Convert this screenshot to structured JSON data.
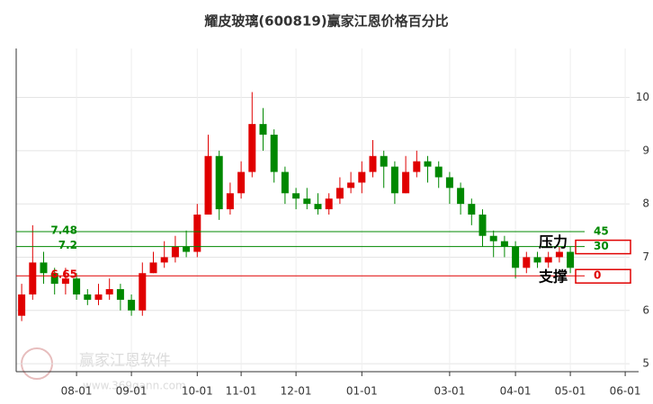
{
  "chart_data": {
    "type": "candlestick",
    "title": "耀皮玻璃(600819)赢家江恩价格百分比",
    "categories": [
      null,
      null,
      null,
      null,
      null,
      "08-01",
      null,
      null,
      null,
      null,
      "09-01",
      null,
      null,
      null,
      null,
      null,
      "10-01",
      null,
      null,
      null,
      "11-01",
      null,
      null,
      null,
      null,
      "12-01",
      null,
      null,
      null,
      null,
      null,
      "01-01",
      null,
      null,
      null,
      null,
      null,
      null,
      null,
      "03-01",
      null,
      null,
      null,
      null,
      null,
      "04-01",
      null,
      null,
      null,
      null,
      "05-01",
      null,
      null,
      null,
      null,
      "06-01"
    ],
    "open": [
      5.9,
      6.3,
      6.9,
      6.7,
      6.5,
      6.6,
      6.3,
      6.2,
      6.3,
      6.4,
      6.2,
      6.0,
      6.7,
      6.9,
      7.0,
      7.2,
      7.1,
      7.8,
      8.9,
      7.9,
      8.2,
      8.6,
      9.5,
      9.3,
      8.6,
      8.2,
      8.1,
      8.0,
      7.9,
      8.1,
      8.3,
      8.4,
      8.6,
      8.9,
      8.7,
      8.2,
      8.6,
      8.8,
      8.7,
      8.5,
      8.3,
      8.0,
      7.8,
      7.4,
      7.3,
      7.2,
      6.8,
      7.0,
      6.9,
      7.0,
      7.1,
      null,
      null,
      null,
      null,
      null
    ],
    "high": [
      6.5,
      7.6,
      7.1,
      6.8,
      6.8,
      6.7,
      6.4,
      6.5,
      6.6,
      6.5,
      6.3,
      6.9,
      7.1,
      7.3,
      7.4,
      7.5,
      8.0,
      9.3,
      9.0,
      8.4,
      8.8,
      10.1,
      9.8,
      9.4,
      8.7,
      8.3,
      8.3,
      8.2,
      8.2,
      8.5,
      8.6,
      8.8,
      9.2,
      9.0,
      8.8,
      8.9,
      9.0,
      8.9,
      8.8,
      8.6,
      8.4,
      8.1,
      7.9,
      7.5,
      7.4,
      7.3,
      7.1,
      7.1,
      7.1,
      7.2,
      7.2,
      null,
      null,
      null,
      null,
      null
    ],
    "low": [
      5.8,
      6.2,
      6.5,
      6.3,
      6.3,
      6.2,
      6.1,
      6.1,
      6.2,
      6.0,
      5.9,
      5.9,
      6.7,
      6.8,
      6.9,
      7.0,
      7.0,
      7.8,
      7.7,
      7.8,
      8.1,
      8.5,
      9.0,
      8.4,
      8.0,
      7.9,
      7.9,
      7.8,
      7.8,
      8.0,
      8.2,
      8.2,
      8.5,
      8.3,
      8.0,
      8.2,
      8.5,
      8.4,
      8.3,
      8.0,
      7.8,
      7.6,
      7.2,
      7.0,
      7.0,
      6.6,
      6.7,
      6.8,
      6.8,
      6.9,
      6.7,
      null,
      null,
      null,
      null,
      null
    ],
    "close": [
      6.3,
      6.9,
      6.7,
      6.5,
      6.6,
      6.3,
      6.2,
      6.3,
      6.4,
      6.2,
      6.0,
      6.7,
      6.9,
      7.0,
      7.2,
      7.1,
      7.8,
      8.9,
      7.9,
      8.2,
      8.6,
      9.5,
      9.3,
      8.6,
      8.2,
      8.1,
      8.0,
      7.9,
      8.1,
      8.3,
      8.4,
      8.6,
      8.9,
      8.7,
      8.2,
      8.6,
      8.8,
      8.7,
      8.5,
      8.3,
      8.0,
      7.8,
      7.4,
      7.3,
      7.2,
      6.8,
      7.0,
      6.9,
      7.0,
      7.1,
      6.8,
      null,
      null,
      null,
      null,
      null
    ],
    "up_color": "#e00000",
    "down_color": "#008800",
    "ylim": [
      4.85,
      10.75
    ],
    "yticks": [
      5,
      6,
      7,
      8,
      9,
      10
    ],
    "grid": true,
    "levels": [
      {
        "value": 7.48,
        "label": "7.48",
        "percent": 45,
        "color": "#008800",
        "boxed": false
      },
      {
        "value": 7.2,
        "label": "7.2",
        "percent": 30,
        "color": "#008800",
        "boxed": true
      },
      {
        "value": 6.65,
        "label": "6.65",
        "percent": 0,
        "color": "#e00000",
        "boxed": true
      }
    ],
    "annotations": [
      {
        "text": "压力",
        "value": 7.2
      },
      {
        "text": "支撑",
        "value": 6.65
      }
    ],
    "watermark": {
      "name": "赢家江恩软件",
      "url": "www.369gann.com"
    }
  }
}
